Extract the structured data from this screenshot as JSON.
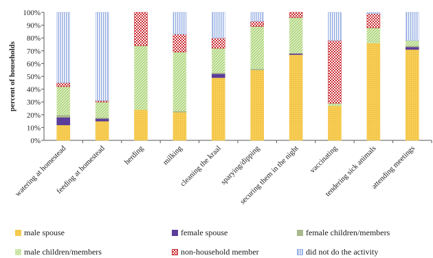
{
  "chart_data": {
    "type": "bar",
    "stacked": true,
    "ylabel": "percent of households",
    "xlabel": "",
    "ylim": [
      0,
      100
    ],
    "yticks": [
      "0%",
      "10%",
      "20%",
      "30%",
      "40%",
      "50%",
      "60%",
      "70%",
      "80%",
      "90%",
      "100%"
    ],
    "grid": false,
    "legend_position": "bottom",
    "categories": [
      "watering at homestead",
      "feeding at homestead",
      "herding",
      "milking",
      "cleaning the kraal",
      "sparying/dipping",
      "securing them in the night",
      "vaccinating",
      "tendering sick animals",
      "attending meetings"
    ],
    "series": [
      {
        "name": "male spouse",
        "color": "#f5c84c",
        "pattern": "dots",
        "values": [
          12,
          15,
          24,
          22,
          49,
          55,
          67,
          27,
          76,
          71
        ]
      },
      {
        "name": "female spouse",
        "color": "#5b3d9a",
        "pattern": "solid",
        "values": [
          6,
          2,
          0,
          0,
          3,
          0,
          1,
          0,
          0,
          2
        ]
      },
      {
        "name": "female children/members",
        "color": "#a9b98c",
        "pattern": "solid",
        "values": [
          2,
          1,
          0,
          1,
          1,
          1,
          0,
          0,
          0,
          1
        ]
      },
      {
        "name": "male children/members",
        "color": "#cfe8a8",
        "pattern": "diag",
        "values": [
          22,
          12,
          50,
          46,
          19,
          33,
          28,
          2,
          12,
          4
        ]
      },
      {
        "name": "non-household member",
        "color": "#c8282e",
        "pattern": "check",
        "values": [
          3,
          1,
          26,
          14,
          8,
          4,
          4,
          49,
          11,
          0
        ]
      },
      {
        "name": "did not do the activity",
        "color": "#9eb6e6",
        "pattern": "vlines",
        "values": [
          55,
          69,
          0,
          17,
          20,
          7,
          0,
          22,
          1,
          22
        ]
      }
    ]
  }
}
